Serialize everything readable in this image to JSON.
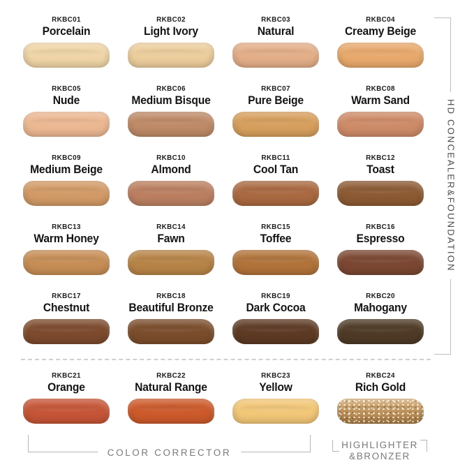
{
  "shades": [
    {
      "code": "RKBC01",
      "name": "Porcelain",
      "color": "#EFD5A7"
    },
    {
      "code": "RKBC02",
      "name": "Light Ivory",
      "color": "#ECCE9D"
    },
    {
      "code": "RKBC03",
      "name": "Natural",
      "color": "#E3AE88"
    },
    {
      "code": "RKBC04",
      "name": "Creamy Beige",
      "color": "#E8A96C"
    },
    {
      "code": "RKBC05",
      "name": "Nude",
      "color": "#ECB892"
    },
    {
      "code": "RKBC06",
      "name": "Medium Bisque",
      "color": "#BE8A67"
    },
    {
      "code": "RKBC07",
      "name": "Pure Beige",
      "color": "#D79F5D"
    },
    {
      "code": "RKBC08",
      "name": "Warm Sand",
      "color": "#CE8B68"
    },
    {
      "code": "RKBC09",
      "name": "Medium Beige",
      "color": "#D29A66"
    },
    {
      "code": "RKBC10",
      "name": "Almond",
      "color": "#BB7F60"
    },
    {
      "code": "RKBC11",
      "name": "Cool Tan",
      "color": "#A96941"
    },
    {
      "code": "RKBC12",
      "name": "Toast",
      "color": "#8C5A33"
    },
    {
      "code": "RKBC13",
      "name": "Warm Honey",
      "color": "#C68D55"
    },
    {
      "code": "RKBC14",
      "name": "Fawn",
      "color": "#B78447"
    },
    {
      "code": "RKBC15",
      "name": "Toffee",
      "color": "#B1733A"
    },
    {
      "code": "RKBC16",
      "name": "Espresso",
      "color": "#7B4732"
    },
    {
      "code": "RKBC17",
      "name": "Chestnut",
      "color": "#7D4A2D"
    },
    {
      "code": "RKBC18",
      "name": "Beautiful Bronze",
      "color": "#7B4D2C"
    },
    {
      "code": "RKBC19",
      "name": "Dark Cocoa",
      "color": "#5D3A24"
    },
    {
      "code": "RKBC20",
      "name": "Mahogany",
      "color": "#4E3A26"
    },
    {
      "code": "RKBC21",
      "name": "Orange",
      "color": "#C65537"
    },
    {
      "code": "RKBC22",
      "name": "Natural Range",
      "color": "#CC5A2B"
    },
    {
      "code": "RKBC23",
      "name": "Yellow",
      "color": "#F2C778"
    },
    {
      "code": "RKBC24",
      "name": "Rich Gold",
      "color": "#BE8A4B",
      "sparkle": true
    }
  ],
  "groups": {
    "right_label": "HD CONCEALER&FOUNDATION",
    "bottom_left_label": "COLOR CORRECTOR",
    "bottom_right_line1": "HIGHLIGHTER",
    "bottom_right_line2": "&BRONZER"
  },
  "line_color": "#b5b5b5"
}
